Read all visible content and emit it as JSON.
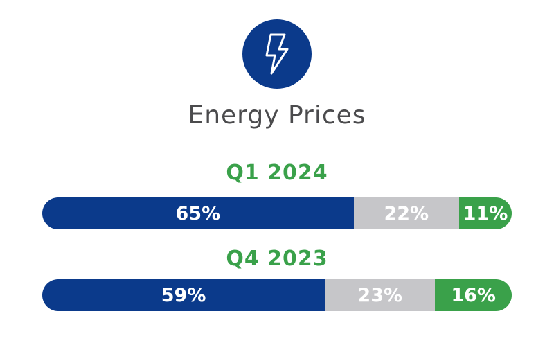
{
  "colors": {
    "blue": "#0b3a8b",
    "gray": "#c6c6c9",
    "green": "#3aa14a",
    "title": "#4b4b4d"
  },
  "icon": "lightning-bolt-icon",
  "title": "Energy Prices",
  "chart_data": {
    "type": "bar",
    "title": "Energy Prices",
    "stacked": true,
    "orientation": "horizontal",
    "categories": [
      "Q1 2024",
      "Q4 2023"
    ],
    "series": [
      {
        "values": [
          65,
          59
        ],
        "labels": [
          "65%",
          "59%"
        ],
        "color": "#0b3a8b"
      },
      {
        "values": [
          22,
          23
        ],
        "labels": [
          "22%",
          "23%"
        ],
        "color": "#c6c6c9"
      },
      {
        "values": [
          11,
          16
        ],
        "labels": [
          "11%",
          "16%"
        ],
        "color": "#3aa14a"
      }
    ],
    "xlim": [
      0,
      98
    ]
  }
}
